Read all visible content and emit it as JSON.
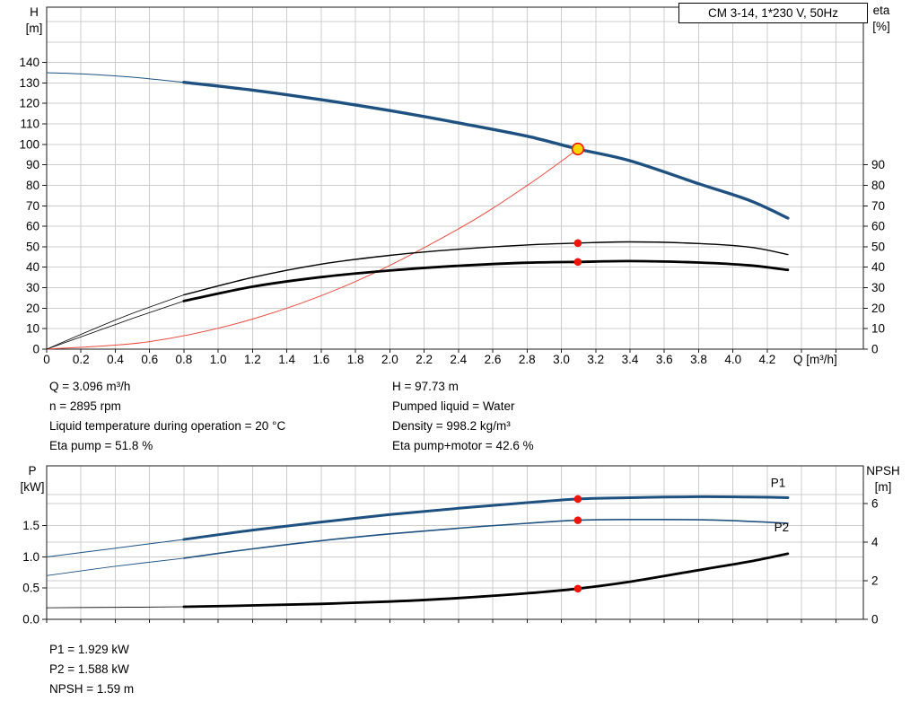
{
  "pump_title": "CM 3-14, 1*230 V, 50Hz",
  "operating_data": {
    "left": [
      "Q = 3.096 m³/h",
      "n = 2895 rpm",
      "Liquid temperature during operation = 20 °C",
      "Eta pump = 51.8 %"
    ],
    "right": [
      "H = 97.73 m",
      "Pumped liquid = Water",
      "Density = 998.2 kg/m³",
      "Eta pump+motor = 42.6 %"
    ]
  },
  "power_data": [
    "P1 = 1.929 kW",
    "P2 = 1.588 kW",
    "NPSH = 1.59 m"
  ],
  "colors": {
    "curve_blue": "#1e5180",
    "curve_red": "#e8493d",
    "dot_red": "#ee1409",
    "duty_yellow": "#ffd500",
    "grid": "#cccccc",
    "axis": "#1a1a1a"
  },
  "chart_data": [
    {
      "id": "performance-curve",
      "type": "line",
      "title": "CM 3-14, 1*230 V, 50Hz",
      "x_axis": {
        "label": "Q [m³/h]",
        "min": 0,
        "max": 4.76,
        "grid_step": 0.2,
        "tick_step": 0.2,
        "tick_label_max": 4.2
      },
      "y_left": {
        "label": "H",
        "unit": "[m]",
        "min": 0,
        "max": 167,
        "tick_step": 10,
        "tick_label_max": 140,
        "tick_decimals": 0
      },
      "y_right": {
        "label": "eta",
        "unit": "[%]",
        "min": 0,
        "max": 167,
        "tick_step": 10,
        "tick_label_max": 90,
        "tick_decimals": 0
      },
      "series": [
        {
          "name": "hq-curve-extrapolated",
          "color": "#1e5180",
          "width": 1,
          "axis": "left",
          "points": [
            [
              0,
              135
            ],
            [
              0.25,
              134.2
            ],
            [
              0.5,
              132.8
            ],
            [
              0.8,
              130.3
            ]
          ]
        },
        {
          "name": "hq-curve",
          "color": "#1e5180",
          "width": 3.4,
          "axis": "left",
          "points": [
            [
              0.8,
              130.3
            ],
            [
              1.2,
              126.5
            ],
            [
              1.6,
              121.8
            ],
            [
              2.0,
              116.5
            ],
            [
              2.4,
              110.5
            ],
            [
              2.8,
              104
            ],
            [
              3.096,
              97.73
            ],
            [
              3.4,
              92
            ],
            [
              3.8,
              80.8
            ],
            [
              4.1,
              72.5
            ],
            [
              4.32,
              64
            ]
          ]
        },
        {
          "name": "system-curve",
          "color": "#e8493d",
          "width": 1,
          "axis": "left",
          "points": [
            [
              0,
              0
            ],
            [
              0.6,
              3.7
            ],
            [
              1.2,
              14.7
            ],
            [
              1.8,
              33.0
            ],
            [
              2.4,
              58.7
            ],
            [
              2.8,
              79.9
            ],
            [
              3.096,
              97.73
            ]
          ]
        },
        {
          "name": "eta-pump-extrapolated",
          "color": "#000000",
          "width": 0.8,
          "axis": "right",
          "points": [
            [
              0,
              0
            ],
            [
              0.25,
              9
            ],
            [
              0.5,
              17.5
            ],
            [
              0.8,
              26.5
            ]
          ]
        },
        {
          "name": "eta-pump",
          "color": "#000000",
          "width": 1.4,
          "axis": "right",
          "points": [
            [
              0.8,
              26.5
            ],
            [
              1.2,
              35
            ],
            [
              1.6,
              41.5
            ],
            [
              2.0,
              45.8
            ],
            [
              2.4,
              48.8
            ],
            [
              2.8,
              50.9
            ],
            [
              3.096,
              51.8
            ],
            [
              3.4,
              52.4
            ],
            [
              3.8,
              51.6
            ],
            [
              4.1,
              49.8
            ],
            [
              4.32,
              46.2
            ]
          ]
        },
        {
          "name": "eta-pump-motor-extrapolated",
          "color": "#000000",
          "width": 0.8,
          "axis": "right",
          "points": [
            [
              0,
              0
            ],
            [
              0.25,
              7.5
            ],
            [
              0.5,
              15
            ],
            [
              0.8,
              23.5
            ]
          ]
        },
        {
          "name": "eta-pump-motor",
          "color": "#000000",
          "width": 2.8,
          "axis": "right",
          "points": [
            [
              0.8,
              23.5
            ],
            [
              1.2,
              30.5
            ],
            [
              1.6,
              35.2
            ],
            [
              2.0,
              38.4
            ],
            [
              2.4,
              40.7
            ],
            [
              2.8,
              42.2
            ],
            [
              3.096,
              42.6
            ],
            [
              3.4,
              43.0
            ],
            [
              3.8,
              42.3
            ],
            [
              4.1,
              40.9
            ],
            [
              4.32,
              38.7
            ]
          ]
        }
      ],
      "markers": [
        {
          "name": "duty-point",
          "x": 3.096,
          "y": 97.73,
          "axis": "left",
          "style": "duty"
        },
        {
          "name": "eta-pump-duty-point",
          "x": 3.096,
          "y": 51.8,
          "axis": "right",
          "style": "dot"
        },
        {
          "name": "eta-pump-motor-duty-point",
          "x": 3.096,
          "y": 42.6,
          "axis": "right",
          "style": "dot"
        }
      ],
      "curve_labels": []
    },
    {
      "id": "power-npsh-curve",
      "type": "line",
      "x_axis": {
        "label": "",
        "min": 0,
        "max": 4.76,
        "grid_step": 0.2,
        "tick_step": 0.2,
        "tick_label_max": -1
      },
      "y_left": {
        "label": "P",
        "unit": "[kW]",
        "min": 0,
        "max": 2.46,
        "tick_step": 0.5,
        "tick_label_max": 1.5,
        "tick_decimals": 1
      },
      "y_right": {
        "label": "NPSH",
        "unit": "[m]",
        "min": 0,
        "max": 7.95,
        "tick_step": 2,
        "tick_label_max": 6,
        "tick_decimals": 0
      },
      "series": [
        {
          "name": "p1-extrapolated",
          "color": "#1e5180",
          "width": 1,
          "axis": "left",
          "points": [
            [
              0,
              1.0
            ],
            [
              0.4,
              1.14
            ],
            [
              0.8,
              1.28
            ]
          ]
        },
        {
          "name": "p1",
          "color": "#1e5180",
          "width": 3,
          "axis": "left",
          "points": [
            [
              0.8,
              1.28
            ],
            [
              1.2,
              1.43
            ],
            [
              1.6,
              1.56
            ],
            [
              2.0,
              1.68
            ],
            [
              2.4,
              1.78
            ],
            [
              2.8,
              1.87
            ],
            [
              3.096,
              1.929
            ],
            [
              3.4,
              1.95
            ],
            [
              3.8,
              1.965
            ],
            [
              4.1,
              1.96
            ],
            [
              4.32,
              1.95
            ]
          ]
        },
        {
          "name": "p2-extrapolated",
          "color": "#1e5180",
          "width": 0.9,
          "axis": "left",
          "points": [
            [
              0,
              0.7
            ],
            [
              0.4,
              0.85
            ],
            [
              0.8,
              0.98
            ]
          ]
        },
        {
          "name": "p2",
          "color": "#1e5180",
          "width": 1.6,
          "axis": "left",
          "points": [
            [
              0.8,
              0.98
            ],
            [
              1.2,
              1.13
            ],
            [
              1.6,
              1.26
            ],
            [
              2.0,
              1.37
            ],
            [
              2.4,
              1.46
            ],
            [
              2.8,
              1.54
            ],
            [
              3.096,
              1.588
            ],
            [
              3.4,
              1.6
            ],
            [
              3.8,
              1.595
            ],
            [
              4.1,
              1.57
            ],
            [
              4.32,
              1.54
            ]
          ]
        },
        {
          "name": "npsh-extrapolated",
          "color": "#000000",
          "width": 0.8,
          "axis": "right",
          "points": [
            [
              0,
              0.6
            ],
            [
              0.4,
              0.62
            ],
            [
              0.8,
              0.65
            ]
          ]
        },
        {
          "name": "npsh",
          "color": "#000000",
          "width": 2.8,
          "axis": "right",
          "points": [
            [
              0.8,
              0.65
            ],
            [
              1.2,
              0.72
            ],
            [
              1.6,
              0.8
            ],
            [
              2.0,
              0.92
            ],
            [
              2.4,
              1.1
            ],
            [
              2.8,
              1.35
            ],
            [
              3.096,
              1.59
            ],
            [
              3.4,
              1.95
            ],
            [
              3.8,
              2.55
            ],
            [
              4.1,
              3.0
            ],
            [
              4.32,
              3.4
            ]
          ]
        }
      ],
      "markers": [
        {
          "name": "p1-duty-point",
          "x": 3.096,
          "y": 1.929,
          "axis": "left",
          "style": "dot"
        },
        {
          "name": "p2-duty-point",
          "x": 3.096,
          "y": 1.588,
          "axis": "left",
          "style": "dot"
        },
        {
          "name": "npsh-duty-point",
          "x": 3.096,
          "y": 1.59,
          "axis": "right",
          "style": "dot"
        }
      ],
      "curve_labels": [
        {
          "text": "P1",
          "x": 4.22,
          "y": 2.12,
          "axis": "left",
          "color": "#1e5180"
        },
        {
          "text": "P2",
          "x": 4.24,
          "y": 1.41,
          "axis": "left",
          "color": "#1e5180"
        }
      ]
    }
  ]
}
